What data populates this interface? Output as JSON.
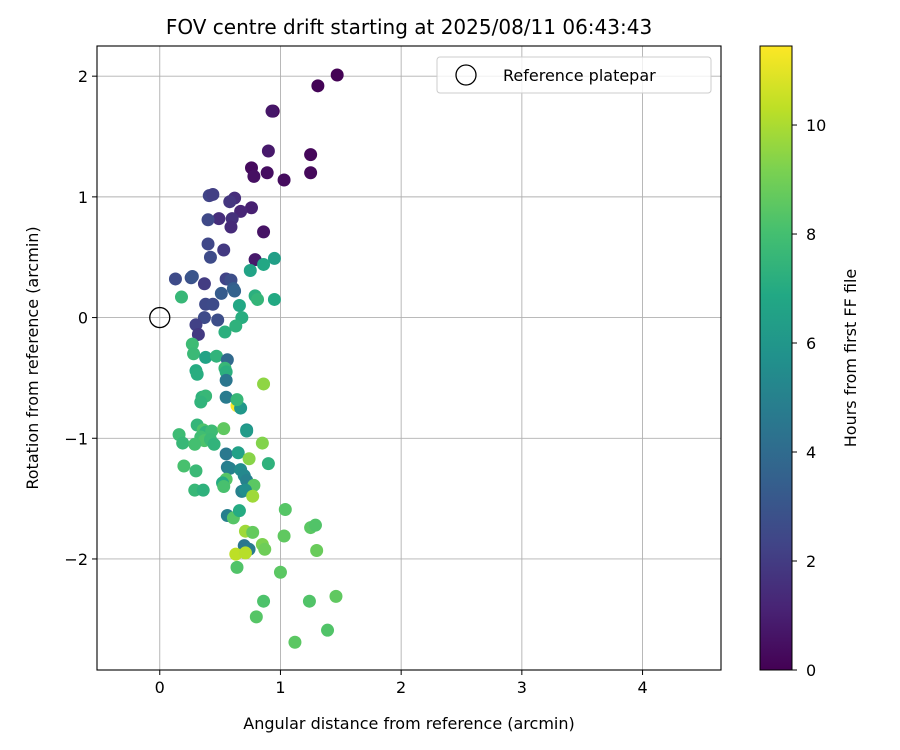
{
  "chart_data": {
    "type": "scatter",
    "title": "FOV centre drift starting at 2025/08/11 06:43:43",
    "xlabel": "Angular distance from reference (arcmin)",
    "ylabel": "Rotation from reference (arcmin)",
    "xlim": [
      -0.52,
      4.65
    ],
    "ylim": [
      -2.92,
      2.25
    ],
    "xticks": [
      0,
      1,
      2,
      3,
      4
    ],
    "yticks": [
      -2,
      -1,
      0,
      1,
      2
    ],
    "xtick_labels": [
      "0",
      "1",
      "2",
      "3",
      "4"
    ],
    "ytick_labels": [
      "−2",
      "−1",
      "0",
      "1",
      "2"
    ],
    "grid": true,
    "legend": {
      "position": "top-right",
      "entries": [
        {
          "label": "Reference platepar",
          "marker": "open-circle"
        }
      ]
    },
    "reference_point": {
      "x": 0,
      "y": 0
    },
    "colorbar": {
      "label": "Hours from first FF file",
      "colormap": "viridis",
      "range": [
        0,
        11.45
      ],
      "ticks": [
        0,
        2,
        4,
        6,
        8,
        10
      ],
      "tick_labels": [
        "0",
        "2",
        "4",
        "6",
        "8",
        "10"
      ]
    },
    "points": [
      {
        "x": 1.47,
        "y": 2.01,
        "c": 0.05
      },
      {
        "x": 1.31,
        "y": 1.92,
        "c": 0.1
      },
      {
        "x": 0.94,
        "y": 1.71,
        "c": 0.15
      },
      {
        "x": 0.93,
        "y": 1.71,
        "c": 0.7
      },
      {
        "x": 0.9,
        "y": 1.38,
        "c": 0.8
      },
      {
        "x": 1.25,
        "y": 1.35,
        "c": 0.2
      },
      {
        "x": 0.76,
        "y": 1.24,
        "c": 0.3
      },
      {
        "x": 0.89,
        "y": 1.2,
        "c": 0.4
      },
      {
        "x": 1.25,
        "y": 1.2,
        "c": 0.25
      },
      {
        "x": 0.78,
        "y": 1.17,
        "c": 0.5
      },
      {
        "x": 1.03,
        "y": 1.14,
        "c": 0.35
      },
      {
        "x": 0.41,
        "y": 1.01,
        "c": 2.3
      },
      {
        "x": 0.44,
        "y": 1.02,
        "c": 2.1
      },
      {
        "x": 0.62,
        "y": 0.99,
        "c": 1.5
      },
      {
        "x": 0.58,
        "y": 0.96,
        "c": 1.8
      },
      {
        "x": 0.76,
        "y": 0.91,
        "c": 1.0
      },
      {
        "x": 0.67,
        "y": 0.88,
        "c": 1.2
      },
      {
        "x": 0.49,
        "y": 0.82,
        "c": 1.5
      },
      {
        "x": 0.4,
        "y": 0.81,
        "c": 2.5
      },
      {
        "x": 0.6,
        "y": 0.82,
        "c": 1.6
      },
      {
        "x": 0.59,
        "y": 0.75,
        "c": 1.4
      },
      {
        "x": 0.86,
        "y": 0.71,
        "c": 0.6
      },
      {
        "x": 0.4,
        "y": 0.61,
        "c": 2.4
      },
      {
        "x": 0.53,
        "y": 0.56,
        "c": 1.9
      },
      {
        "x": 0.42,
        "y": 0.5,
        "c": 2.6
      },
      {
        "x": 0.79,
        "y": 0.48,
        "c": 0.8
      },
      {
        "x": 0.95,
        "y": 0.49,
        "c": 6.4
      },
      {
        "x": 0.86,
        "y": 0.44,
        "c": 6.8
      },
      {
        "x": 0.75,
        "y": 0.39,
        "c": 6.6
      },
      {
        "x": 0.13,
        "y": 0.32,
        "c": 2.6
      },
      {
        "x": 0.26,
        "y": 0.33,
        "c": 2.8
      },
      {
        "x": 0.27,
        "y": 0.34,
        "c": 3.0
      },
      {
        "x": 0.55,
        "y": 0.32,
        "c": 2.3
      },
      {
        "x": 0.59,
        "y": 0.31,
        "c": 2.7
      },
      {
        "x": 0.37,
        "y": 0.28,
        "c": 2.0
      },
      {
        "x": 0.61,
        "y": 0.24,
        "c": 3.4
      },
      {
        "x": 0.62,
        "y": 0.22,
        "c": 3.6
      },
      {
        "x": 0.51,
        "y": 0.2,
        "c": 3.3
      },
      {
        "x": 0.18,
        "y": 0.17,
        "c": 7.6
      },
      {
        "x": 0.79,
        "y": 0.18,
        "c": 7.2
      },
      {
        "x": 0.81,
        "y": 0.15,
        "c": 7.5
      },
      {
        "x": 0.95,
        "y": 0.15,
        "c": 6.9
      },
      {
        "x": 0.38,
        "y": 0.11,
        "c": 2.5
      },
      {
        "x": 0.44,
        "y": 0.11,
        "c": 2.6
      },
      {
        "x": 0.66,
        "y": 0.1,
        "c": 6.8
      },
      {
        "x": 0.37,
        "y": 0.0,
        "c": 2.6
      },
      {
        "x": 0.48,
        "y": -0.02,
        "c": 2.7
      },
      {
        "x": 0.68,
        "y": 0.0,
        "c": 7.1
      },
      {
        "x": 0.63,
        "y": -0.07,
        "c": 7.3
      },
      {
        "x": 0.3,
        "y": -0.06,
        "c": 2.2
      },
      {
        "x": 0.54,
        "y": -0.12,
        "c": 7.2
      },
      {
        "x": 0.32,
        "y": -0.14,
        "c": 1.9
      },
      {
        "x": 0.27,
        "y": -0.22,
        "c": 7.8
      },
      {
        "x": 0.28,
        "y": -0.3,
        "c": 7.7
      },
      {
        "x": 0.38,
        "y": -0.33,
        "c": 6.6
      },
      {
        "x": 0.47,
        "y": -0.32,
        "c": 7.4
      },
      {
        "x": 0.56,
        "y": -0.35,
        "c": 3.9
      },
      {
        "x": 0.54,
        "y": -0.42,
        "c": 7.6
      },
      {
        "x": 0.3,
        "y": -0.44,
        "c": 7.0
      },
      {
        "x": 0.31,
        "y": -0.47,
        "c": 7.1
      },
      {
        "x": 0.55,
        "y": -0.45,
        "c": 7.2
      },
      {
        "x": 0.55,
        "y": -0.52,
        "c": 4.5
      },
      {
        "x": 0.86,
        "y": -0.55,
        "c": 9.5
      },
      {
        "x": 0.35,
        "y": -0.66,
        "c": 7.3
      },
      {
        "x": 0.38,
        "y": -0.65,
        "c": 7.6
      },
      {
        "x": 0.34,
        "y": -0.7,
        "c": 7.4
      },
      {
        "x": 0.55,
        "y": -0.66,
        "c": 4.7
      },
      {
        "x": 0.64,
        "y": -0.73,
        "c": 11.4
      },
      {
        "x": 0.67,
        "y": -0.75,
        "c": 6.0
      },
      {
        "x": 0.64,
        "y": -0.68,
        "c": 7.6
      },
      {
        "x": 0.31,
        "y": -0.89,
        "c": 7.5
      },
      {
        "x": 0.36,
        "y": -0.93,
        "c": 8.2
      },
      {
        "x": 0.38,
        "y": -0.95,
        "c": 7.4
      },
      {
        "x": 0.43,
        "y": -0.94,
        "c": 7.8
      },
      {
        "x": 0.53,
        "y": -0.92,
        "c": 8.6
      },
      {
        "x": 0.72,
        "y": -0.93,
        "c": 5.7
      },
      {
        "x": 0.72,
        "y": -0.94,
        "c": 6.2
      },
      {
        "x": 0.16,
        "y": -0.97,
        "c": 7.8
      },
      {
        "x": 0.34,
        "y": -0.99,
        "c": 7.9
      },
      {
        "x": 0.37,
        "y": -1.02,
        "c": 8.2
      },
      {
        "x": 0.42,
        "y": -1.01,
        "c": 7.7
      },
      {
        "x": 0.19,
        "y": -1.04,
        "c": 7.6
      },
      {
        "x": 0.29,
        "y": -1.05,
        "c": 8.0
      },
      {
        "x": 0.45,
        "y": -1.05,
        "c": 7.4
      },
      {
        "x": 0.85,
        "y": -1.04,
        "c": 9.3
      },
      {
        "x": 0.55,
        "y": -1.13,
        "c": 4.6
      },
      {
        "x": 0.65,
        "y": -1.12,
        "c": 6.5
      },
      {
        "x": 0.74,
        "y": -1.17,
        "c": 9.4
      },
      {
        "x": 0.9,
        "y": -1.21,
        "c": 7.3
      },
      {
        "x": 0.2,
        "y": -1.23,
        "c": 8.1
      },
      {
        "x": 0.56,
        "y": -1.24,
        "c": 4.8
      },
      {
        "x": 0.58,
        "y": -1.25,
        "c": 5.0
      },
      {
        "x": 0.3,
        "y": -1.27,
        "c": 7.7
      },
      {
        "x": 0.67,
        "y": -1.26,
        "c": 5.5
      },
      {
        "x": 0.7,
        "y": -1.31,
        "c": 5.3
      },
      {
        "x": 0.55,
        "y": -1.34,
        "c": 8.4
      },
      {
        "x": 0.52,
        "y": -1.37,
        "c": 7.0
      },
      {
        "x": 0.72,
        "y": -1.35,
        "c": 5.0
      },
      {
        "x": 0.78,
        "y": -1.39,
        "c": 8.5
      },
      {
        "x": 0.29,
        "y": -1.43,
        "c": 7.6
      },
      {
        "x": 0.36,
        "y": -1.43,
        "c": 7.3
      },
      {
        "x": 0.53,
        "y": -1.4,
        "c": 8.1
      },
      {
        "x": 0.68,
        "y": -1.44,
        "c": 5.0
      },
      {
        "x": 0.71,
        "y": -1.43,
        "c": 5.6
      },
      {
        "x": 0.77,
        "y": -1.48,
        "c": 9.8
      },
      {
        "x": 0.56,
        "y": -1.64,
        "c": 4.9
      },
      {
        "x": 0.61,
        "y": -1.66,
        "c": 8.4
      },
      {
        "x": 0.66,
        "y": -1.6,
        "c": 7.0
      },
      {
        "x": 1.04,
        "y": -1.59,
        "c": 8.4
      },
      {
        "x": 1.25,
        "y": -1.74,
        "c": 8.5
      },
      {
        "x": 1.29,
        "y": -1.72,
        "c": 8.3
      },
      {
        "x": 0.71,
        "y": -1.77,
        "c": 9.8
      },
      {
        "x": 0.77,
        "y": -1.78,
        "c": 8.7
      },
      {
        "x": 1.03,
        "y": -1.81,
        "c": 8.6
      },
      {
        "x": 0.7,
        "y": -1.89,
        "c": 4.5
      },
      {
        "x": 0.74,
        "y": -1.92,
        "c": 4.7
      },
      {
        "x": 0.85,
        "y": -1.88,
        "c": 9.2
      },
      {
        "x": 0.87,
        "y": -1.92,
        "c": 8.9
      },
      {
        "x": 1.3,
        "y": -1.93,
        "c": 8.8
      },
      {
        "x": 0.63,
        "y": -1.96,
        "c": 10.3
      },
      {
        "x": 0.71,
        "y": -1.95,
        "c": 10.2
      },
      {
        "x": 0.64,
        "y": -2.07,
        "c": 8.3
      },
      {
        "x": 1.0,
        "y": -2.11,
        "c": 8.5
      },
      {
        "x": 0.86,
        "y": -2.35,
        "c": 8.2
      },
      {
        "x": 1.24,
        "y": -2.35,
        "c": 8.3
      },
      {
        "x": 1.46,
        "y": -2.31,
        "c": 8.6
      },
      {
        "x": 0.8,
        "y": -2.48,
        "c": 8.4
      },
      {
        "x": 1.39,
        "y": -2.59,
        "c": 8.3
      },
      {
        "x": 1.12,
        "y": -2.69,
        "c": 8.5
      }
    ]
  }
}
